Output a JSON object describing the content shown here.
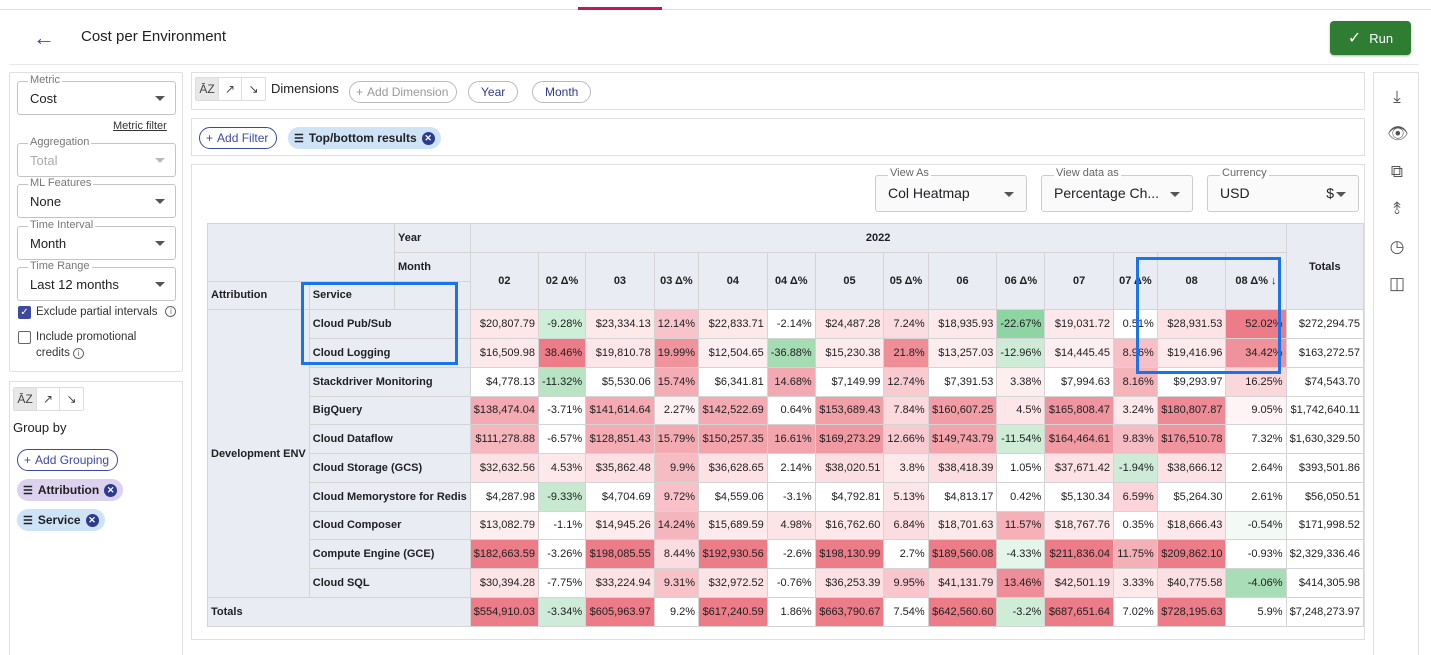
{
  "header": {
    "title": "Cost per Environment",
    "run_label": "Run"
  },
  "left": {
    "metric": {
      "label": "Metric",
      "value": "Cost"
    },
    "metric_filter": "Metric filter",
    "aggregation": {
      "label": "Aggregation",
      "value": "Total"
    },
    "ml_features": {
      "label": "ML Features",
      "value": "None"
    },
    "time_interval": {
      "label": "Time Interval",
      "value": "Month"
    },
    "time_range": {
      "label": "Time Range",
      "value": "Last 12 months"
    },
    "exclude_partial": "Exclude partial intervals",
    "include_promo_1": "Include promotional",
    "include_promo_2": "credits"
  },
  "grouping": {
    "label": "Group by",
    "add": "Add Grouping",
    "chips": [
      "Attribution",
      "Service"
    ]
  },
  "dimensions": {
    "label": "Dimensions",
    "add": "Add Dimension",
    "chips": [
      "Year",
      "Month"
    ]
  },
  "filters": {
    "add": "Add Filter",
    "chip": "Top/bottom results"
  },
  "view": {
    "view_as": {
      "label": "View As",
      "value": "Col Heatmap"
    },
    "view_data_as": {
      "label": "View data as",
      "value": "Percentage Ch..."
    },
    "currency": {
      "label": "Currency",
      "value": "USD",
      "symbol": "$"
    }
  },
  "table": {
    "year_label": "Year",
    "month_label": "Month",
    "year": "2022",
    "attribution_label": "Attribution",
    "service_label": "Service",
    "totals_label": "Totals",
    "group_name": "Development ENV",
    "columns": [
      "02",
      "02 Δ%",
      "03",
      "03 Δ%",
      "04",
      "04 Δ%",
      "05",
      "05 Δ%",
      "06",
      "06 Δ%",
      "07",
      "07 Δ%",
      "08",
      "08 Δ% ↓"
    ],
    "rows": [
      {
        "service": "Cloud Pub/Sub",
        "cells": [
          "$20,807.79",
          "-9.28%",
          "$23,334.13",
          "12.14%",
          "$22,833.71",
          "-2.14%",
          "$24,487.28",
          "7.24%",
          "$18,935.93",
          "-22.67%",
          "$19,031.72",
          "0.51%",
          "$28,931.53",
          "52.02%"
        ],
        "total": "$272,294.75"
      },
      {
        "service": "Cloud Logging",
        "cells": [
          "$16,509.98",
          "38.46%",
          "$19,810.78",
          "19.99%",
          "$12,504.65",
          "-36.88%",
          "$15,230.38",
          "21.8%",
          "$13,257.03",
          "-12.96%",
          "$14,445.45",
          "8.96%",
          "$19,416.96",
          "34.42%"
        ],
        "total": "$163,272.57"
      },
      {
        "service": "Stackdriver Monitoring",
        "cells": [
          "$4,778.13",
          "-11.32%",
          "$5,530.06",
          "15.74%",
          "$6,341.81",
          "14.68%",
          "$7,149.99",
          "12.74%",
          "$7,391.53",
          "3.38%",
          "$7,994.63",
          "8.16%",
          "$9,293.97",
          "16.25%"
        ],
        "total": "$74,543.70"
      },
      {
        "service": "BigQuery",
        "cells": [
          "$138,474.04",
          "-3.71%",
          "$141,614.64",
          "2.27%",
          "$142,522.69",
          "0.64%",
          "$153,689.43",
          "7.84%",
          "$160,607.25",
          "4.5%",
          "$165,808.47",
          "3.24%",
          "$180,807.87",
          "9.05%"
        ],
        "total": "$1,742,640.11"
      },
      {
        "service": "Cloud Dataflow",
        "cells": [
          "$111,278.88",
          "-6.57%",
          "$128,851.43",
          "15.79%",
          "$150,257.35",
          "16.61%",
          "$169,273.29",
          "12.66%",
          "$149,743.79",
          "-11.54%",
          "$164,464.61",
          "9.83%",
          "$176,510.78",
          "7.32%"
        ],
        "total": "$1,630,329.50"
      },
      {
        "service": "Cloud Storage (GCS)",
        "cells": [
          "$32,632.56",
          "4.53%",
          "$35,862.48",
          "9.9%",
          "$36,628.65",
          "2.14%",
          "$38,020.51",
          "3.8%",
          "$38,418.39",
          "1.05%",
          "$37,671.42",
          "-1.94%",
          "$38,666.12",
          "2.64%"
        ],
        "total": "$393,501.86"
      },
      {
        "service": "Cloud Memorystore for Redis",
        "cells": [
          "$4,287.98",
          "-9.33%",
          "$4,704.69",
          "9.72%",
          "$4,559.06",
          "-3.1%",
          "$4,792.81",
          "5.13%",
          "$4,813.17",
          "0.42%",
          "$5,130.34",
          "6.59%",
          "$5,264.30",
          "2.61%"
        ],
        "total": "$56,050.51"
      },
      {
        "service": "Cloud Composer",
        "cells": [
          "$13,082.79",
          "-1.1%",
          "$14,945.26",
          "14.24%",
          "$15,689.59",
          "4.98%",
          "$16,762.60",
          "6.84%",
          "$18,701.63",
          "11.57%",
          "$18,767.76",
          "0.35%",
          "$18,666.43",
          "-0.54%"
        ],
        "total": "$171,998.52"
      },
      {
        "service": "Compute Engine (GCE)",
        "cells": [
          "$182,663.59",
          "-3.26%",
          "$198,085.55",
          "8.44%",
          "$192,930.56",
          "-2.6%",
          "$198,130.99",
          "2.7%",
          "$189,560.08",
          "-4.33%",
          "$211,836.04",
          "11.75%",
          "$209,862.10",
          "-0.93%"
        ],
        "total": "$2,329,336.46"
      },
      {
        "service": "Cloud SQL",
        "cells": [
          "$30,394.28",
          "-7.75%",
          "$33,224.94",
          "9.31%",
          "$32,972.52",
          "-0.76%",
          "$36,253.39",
          "9.95%",
          "$41,131.79",
          "13.46%",
          "$42,501.19",
          "3.33%",
          "$40,775.58",
          "-4.06%"
        ],
        "total": "$414,305.98"
      }
    ],
    "totals": {
      "cells": [
        "$554,910.03",
        "-3.34%",
        "$605,963.97",
        "9.2%",
        "$617,240.59",
        "1.86%",
        "$663,790.67",
        "7.54%",
        "$642,560.60",
        "-3.2%",
        "$687,651.64",
        "7.02%",
        "$728,195.63",
        "5.9%"
      ],
      "total": "$7,248,273.97"
    },
    "heat": [
      [
        "#fde7e9",
        "#cfeed8",
        "#fde8ea",
        "#f7c4cb",
        "#fde8ea",
        "#fff",
        "#fde4e7",
        "#fbdde1",
        "#fde9eb",
        "#8fd4a3",
        "#fde9eb",
        "#fff",
        "#fde2e6",
        "#ec7c87"
      ],
      [
        "#fde9eb",
        "#ec7c87",
        "#fde6e9",
        "#ef939c",
        "#fdeff1",
        "#a6dcb4",
        "#fdebed",
        "#f08e98",
        "#fdedef",
        "#cdebd6",
        "#fdeff1",
        "#f7c0c7",
        "#fdeaec",
        "#f0929b"
      ],
      [
        "#fff",
        "#b8e4c4",
        "#fff",
        "#f4adb5",
        "#fff",
        "#f3a9b1",
        "#fff",
        "#f8cbd1",
        "#fff",
        "#fdeef0",
        "#fff",
        "#f5b3ba",
        "#fff",
        "#fad7db"
      ],
      [
        "#f4aab2",
        "#fff",
        "#f4aab2",
        "#fef0f2",
        "#f4aab2",
        "#fff",
        "#f2a0a8",
        "#fbd9dd",
        "#f29ca5",
        "#fde6e9",
        "#f095a0",
        "#fde9ec",
        "#ee8a95",
        "#fef3f5"
      ],
      [
        "#f5b6bd",
        "#fff",
        "#f4adb5",
        "#f3aab1",
        "#f3a3ac",
        "#f2a5ad",
        "#f099a2",
        "#f8cbd1",
        "#f3a4ac",
        "#cfecd7",
        "#f09aa3",
        "#f6bcc3",
        "#f095a0",
        "#fff"
      ],
      [
        "#fce2e5",
        "#fde9ec",
        "#fce0e3",
        "#f6bcc3",
        "#fde1e5",
        "#fff",
        "#fcdee2",
        "#fde8eb",
        "#fcdde1",
        "#fff",
        "#fde1e4",
        "#cdebd6",
        "#fde2e5",
        "#fff"
      ],
      [
        "#fff",
        "#c6e9cf",
        "#fff",
        "#f7c1c7",
        "#fff",
        "#fff",
        "#fff",
        "#fde6e9",
        "#fff",
        "#fff",
        "#fff",
        "#fbd5da",
        "#fff",
        "#fff"
      ],
      [
        "#fdeef0",
        "#fff",
        "#fdebee",
        "#f5b5bc",
        "#fdeaec",
        "#fde4e7",
        "#fde9eb",
        "#fbdde1",
        "#fde8ea",
        "#f5b0b8",
        "#fde9ec",
        "#fff",
        "#fde9ec",
        "#f3faf5"
      ],
      [
        "#ec7c87",
        "#fff",
        "#ec7c87",
        "#fbdde1",
        "#ec7c87",
        "#fff",
        "#ec7c87",
        "#fff",
        "#ec7c87",
        "#e4f5e9",
        "#ec7c87",
        "#f4b0b7",
        "#ec7c87",
        "#fff"
      ],
      [
        "#fde4e7",
        "#fff",
        "#fde2e5",
        "#f7c3c9",
        "#fde3e6",
        "#fff",
        "#fde0e4",
        "#f8c6cc",
        "#fcdade",
        "#ee8e98",
        "#fcdde1",
        "#fde9ec",
        "#fcdfe3",
        "#a8ddb7"
      ]
    ],
    "totals_heat": [
      "#ec7c87",
      "#cdebd6",
      "#ec7c87",
      "#fff",
      "#ec7c87",
      "#fff",
      "#ec7c87",
      "#fff",
      "#ec7c87",
      "#cfecd7",
      "#ec7c87",
      "#fff",
      "#ec7c87",
      "#fff"
    ],
    "totals_total_heat": "#fff"
  }
}
